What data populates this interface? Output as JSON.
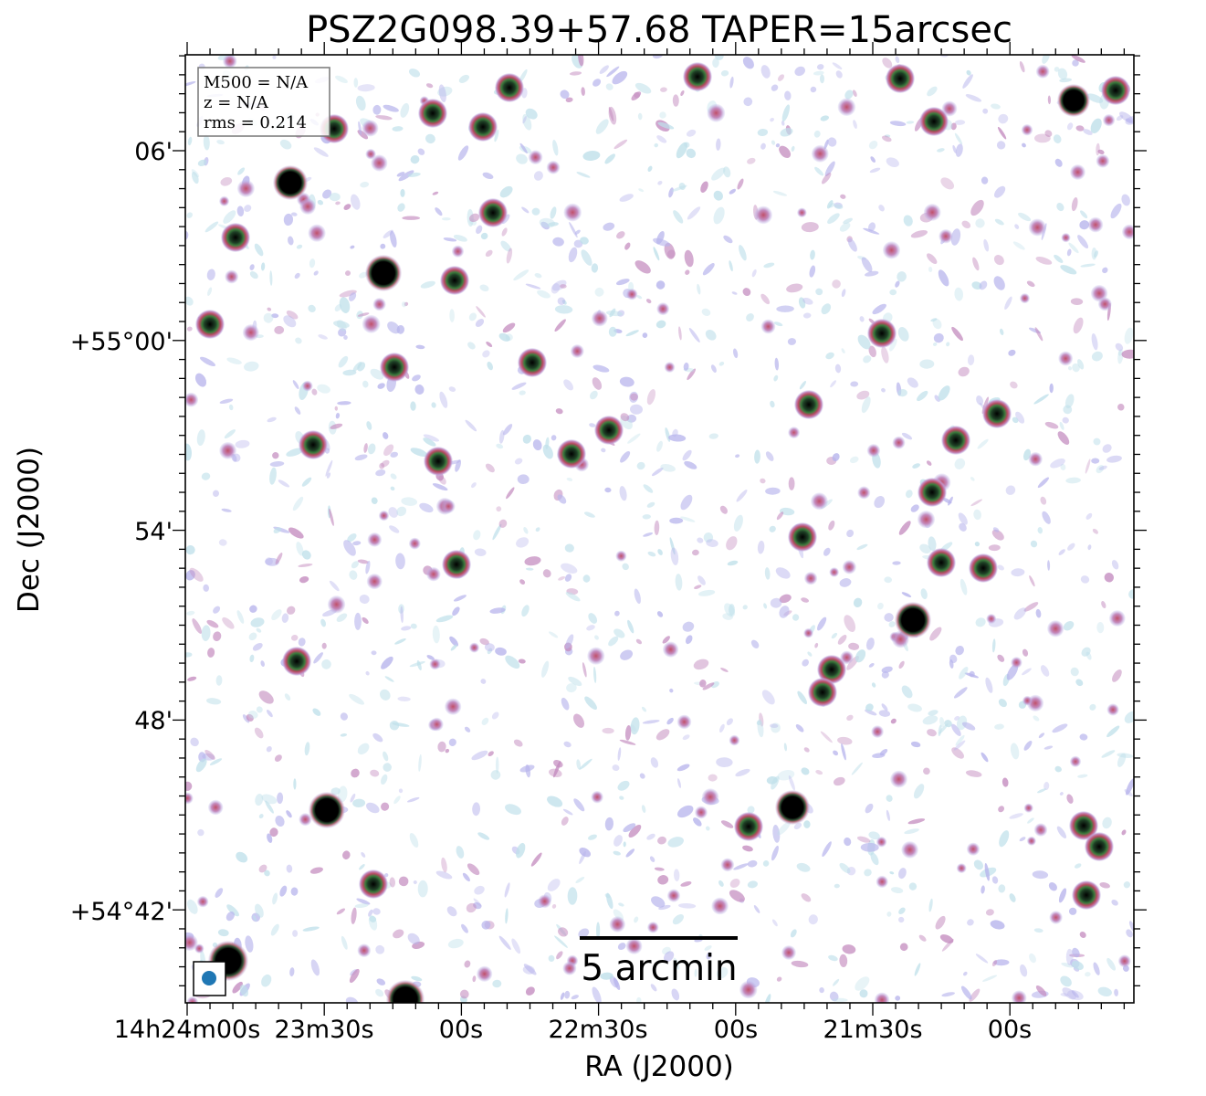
{
  "title": "PSZ2G098.39+57.68 TAPER=15arcsec",
  "info_box": {
    "line1": "M500 = N/A",
    "line2": "z = N/A",
    "line3": "rms = 0.214"
  },
  "axes": {
    "xlabel": "RA (J2000)",
    "ylabel": "Dec (J2000)",
    "x_ticks": [
      "14h24m00s",
      "23m30s",
      "00s",
      "22m30s",
      "00s",
      "21m30s",
      "00s"
    ],
    "y_ticks": [
      "06'",
      "+55°00'",
      "54'",
      "48'",
      "+54°42'"
    ]
  },
  "scale_bar": {
    "label": "5 arcmin"
  },
  "beam_marker": {
    "color": "#1f77b4"
  },
  "colors": {
    "noise_light": "#bfe0ea",
    "noise_blue": "#b7b4ec",
    "noise_pink": "#c48cbf",
    "source_red": "#c0506a",
    "source_green": "#2f6f3a",
    "source_core": "#000000"
  }
}
